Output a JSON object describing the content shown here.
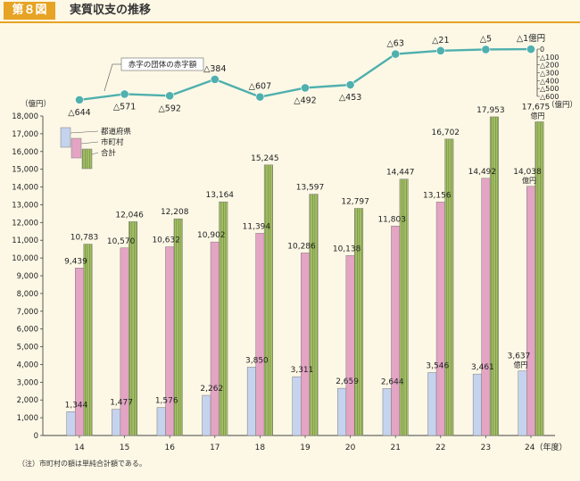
{
  "header": {
    "figure_label": "第８図",
    "title": "実質収支の推移"
  },
  "note": "（注）市町村の額は単純合計額である。",
  "chart_data": [
    {
      "type": "line",
      "series_name": "赤字の団体の赤字額",
      "unit_label": "（億円）",
      "x": [
        "14",
        "15",
        "16",
        "17",
        "18",
        "19",
        "20",
        "21",
        "22",
        "23",
        "24"
      ],
      "values": [
        644,
        571,
        592,
        384,
        607,
        492,
        453,
        63,
        21,
        5,
        1
      ],
      "value_labels": [
        "△644",
        "△571",
        "△592",
        "△384",
        "△607",
        "△492",
        "△453",
        "△63",
        "△21",
        "△5",
        "△1億円"
      ],
      "axis_ticks": [
        "0",
        "△100",
        "△200",
        "△300",
        "△400",
        "△500",
        "△600"
      ],
      "ylim": [
        0,
        600
      ],
      "inverted": true,
      "color": "#4fb0ad"
    },
    {
      "type": "bar",
      "ylabel": "（億円）",
      "xlabel": "（年度）",
      "categories": [
        "14",
        "15",
        "16",
        "17",
        "18",
        "19",
        "20",
        "21",
        "22",
        "23",
        "24"
      ],
      "last_category_label": "24（年度）",
      "ylim": [
        0,
        18000
      ],
      "yticks": [
        "0",
        "1,000",
        "2,000",
        "3,000",
        "4,000",
        "5,000",
        "6,000",
        "7,000",
        "8,000",
        "9,000",
        "10,000",
        "11,000",
        "12,000",
        "13,000",
        "14,000",
        "15,000",
        "16,000",
        "17,000",
        "18,000"
      ],
      "series": [
        {
          "name": "都道府県",
          "color": "#c5d3ee",
          "values": [
            1344,
            1477,
            1576,
            2262,
            3850,
            3311,
            2659,
            2644,
            3546,
            3461,
            3637
          ],
          "labels": [
            "1,344",
            "1,477",
            "1,576",
            "2,262",
            "3,850",
            "3,311",
            "2,659",
            "2,644",
            "3,546",
            "3,461",
            "3,637"
          ]
        },
        {
          "name": "市町村",
          "color": "#e4a4c4",
          "values": [
            9439,
            10570,
            10632,
            10902,
            11394,
            10286,
            10138,
            11803,
            13156,
            14492,
            14038
          ],
          "labels": [
            "9,439",
            "10,570",
            "10,632",
            "10,902",
            "11,394",
            "10,286",
            "10,138",
            "11,803",
            "13,156",
            "14,492",
            "14,038"
          ]
        },
        {
          "name": "合計",
          "color": "#a6c06a",
          "values": [
            10783,
            12046,
            12208,
            13164,
            15245,
            13597,
            12797,
            14447,
            16702,
            17953,
            17675
          ],
          "labels": [
            "10,783",
            "12,046",
            "12,208",
            "13,164",
            "15,245",
            "13,597",
            "12,797",
            "14,447",
            "16,702",
            "17,953",
            "17,675"
          ]
        }
      ],
      "last_unit_suffix": "億円",
      "legend_position": "top-left"
    }
  ]
}
